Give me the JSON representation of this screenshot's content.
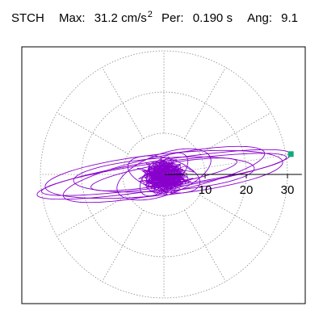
{
  "header": {
    "station": "STCH",
    "max_label": "Max:",
    "max_value": "31.2",
    "max_unit": "cm/s",
    "max_unit_exp": "2",
    "per_label": "Per:",
    "per_value": "0.190 s",
    "ang_label": "Ang:",
    "ang_value": "9.1"
  },
  "chart_data": {
    "type": "polar-orbit",
    "title": "",
    "radial_ticks": [
      "10",
      "20",
      "30"
    ],
    "radial_tick_values": [
      10,
      20,
      30
    ],
    "r_max": 32,
    "angle_grid_step_deg": 30,
    "grid": true,
    "peak": {
      "amplitude": 31.2,
      "angle_deg": 9.1,
      "period_s": 0.19
    },
    "orbits": [
      {
        "a": 31.2,
        "b": 3.5,
        "tilt_deg": 9.1
      },
      {
        "a": 29.0,
        "b": 5.0,
        "tilt_deg": 6.0
      },
      {
        "a": 25.0,
        "b": 4.5,
        "tilt_deg": 12.0
      },
      {
        "a": 30.0,
        "b": 3.0,
        "tilt_deg": 8.0
      },
      {
        "a": 22.0,
        "b": 4.0,
        "tilt_deg": 4.0
      },
      {
        "a": 18.0,
        "b": 2.5,
        "tilt_deg": 10.0
      },
      {
        "a": 12.0,
        "b": 5.0,
        "tilt_deg": 20.0
      },
      {
        "a": 9.0,
        "b": 4.0,
        "tilt_deg": -15.0
      },
      {
        "a": 7.0,
        "b": 3.5,
        "tilt_deg": 40.0
      }
    ],
    "colors": {
      "trace": "#8800cc",
      "marker": "#11aa77",
      "grid": "#8a8a8a",
      "axis": "#000000"
    }
  }
}
